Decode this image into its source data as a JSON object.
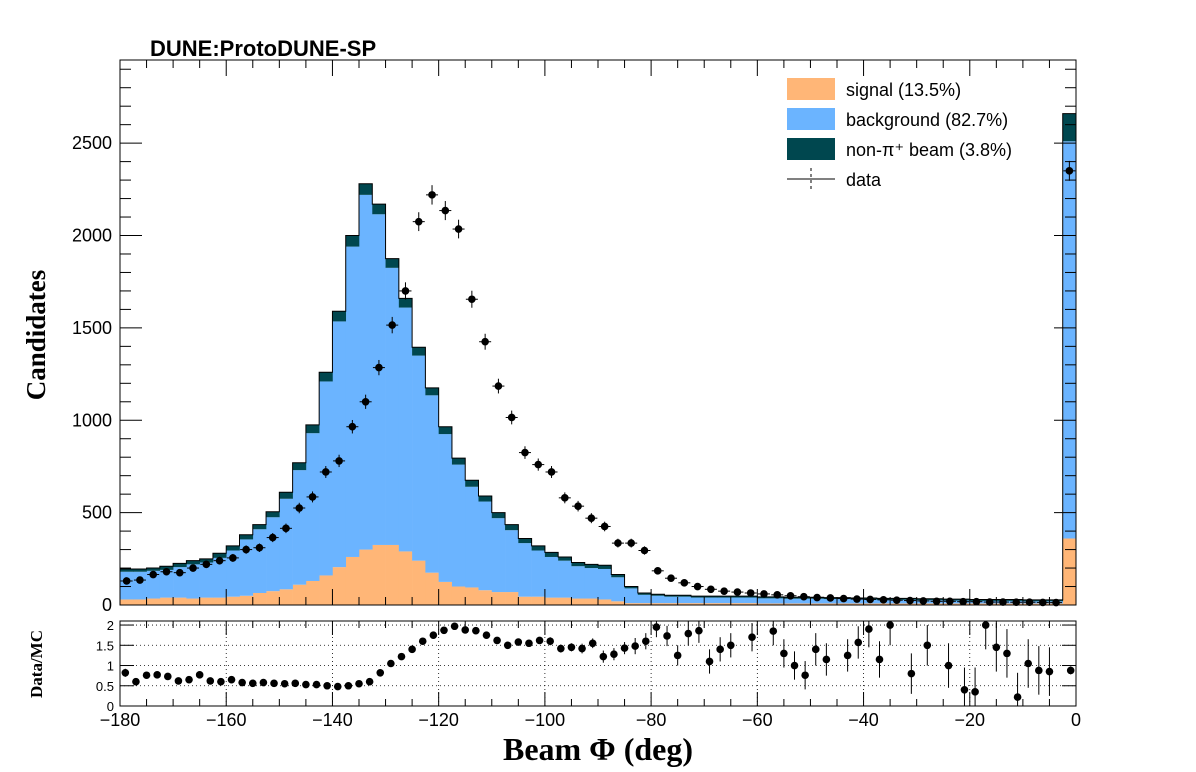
{
  "chart_data": [
    {
      "type": "bar",
      "title": "DUNE:ProtoDUNE-SP",
      "stacked": true,
      "ylabel": "Candidates",
      "ylim": [
        0,
        2950
      ],
      "xlim": [
        -180,
        0
      ],
      "bin_width": 2.5,
      "bin_starts": [
        -180,
        -177.5,
        -175,
        -172.5,
        -170,
        -167.5,
        -165,
        -162.5,
        -160,
        -157.5,
        -155,
        -152.5,
        -150,
        -147.5,
        -145,
        -142.5,
        -140,
        -137.5,
        -135,
        -132.5,
        -130,
        -127.5,
        -125,
        -122.5,
        -120,
        -117.5,
        -115,
        -112.5,
        -110,
        -107.5,
        -105,
        -102.5,
        -100,
        -97.5,
        -95,
        -92.5,
        -90,
        -87.5,
        -85,
        -82.5,
        -80,
        -77.5,
        -75,
        -72.5,
        -70,
        -67.5,
        -65,
        -62.5,
        -60,
        -57.5,
        -55,
        -52.5,
        -50,
        -47.5,
        -45,
        -42.5,
        -40,
        -37.5,
        -35,
        -32.5,
        -30,
        -27.5,
        -25,
        -22.5,
        -20,
        -17.5,
        -15,
        -12.5,
        -10,
        -7.5,
        -5,
        -2.5
      ],
      "y_ticks": [
        0,
        500,
        1000,
        1500,
        2000,
        2500
      ],
      "x_ticks": [
        -180,
        -160,
        -140,
        -120,
        -100,
        -80,
        -60,
        -40,
        -20,
        0
      ],
      "x_tick_labels": [
        "−180",
        "−160",
        "−140",
        "−120",
        "−100",
        "−80",
        "−60",
        "−40",
        "−20",
        "0"
      ],
      "series": [
        {
          "name": "signal (13.5%)",
          "color": "#ffb677",
          "values": [
            30,
            30,
            35,
            40,
            40,
            35,
            40,
            40,
            45,
            50,
            65,
            75,
            85,
            110,
            130,
            160,
            205,
            260,
            300,
            325,
            325,
            290,
            240,
            175,
            125,
            100,
            95,
            80,
            70,
            70,
            45,
            45,
            40,
            40,
            35,
            35,
            30,
            20,
            10,
            10,
            10,
            10,
            10,
            10,
            10,
            10,
            10,
            10,
            8,
            8,
            8,
            8,
            8,
            8,
            8,
            8,
            8,
            8,
            8,
            8,
            8,
            8,
            8,
            8,
            8,
            8,
            8,
            8,
            8,
            8,
            8,
            360
          ]
        },
        {
          "name": "background (82.7%)",
          "color": "#6bb4ff",
          "values": [
            150,
            150,
            150,
            150,
            165,
            185,
            190,
            215,
            250,
            305,
            345,
            400,
            490,
            620,
            800,
            1050,
            1330,
            1680,
            1920,
            1790,
            1500,
            1320,
            1110,
            960,
            800,
            660,
            545,
            480,
            400,
            335,
            290,
            250,
            220,
            200,
            175,
            165,
            165,
            130,
            80,
            45,
            40,
            35,
            35,
            30,
            30,
            30,
            30,
            30,
            28,
            28,
            26,
            26,
            26,
            24,
            24,
            22,
            22,
            20,
            20,
            20,
            18,
            18,
            16,
            16,
            14,
            14,
            14,
            14,
            12,
            12,
            12,
            2150
          ]
        },
        {
          "name": "non-π⁺ beam (3.8%)",
          "color": "#00474f",
          "values": [
            15,
            15,
            15,
            20,
            20,
            20,
            20,
            25,
            25,
            25,
            25,
            30,
            35,
            40,
            45,
            50,
            55,
            60,
            60,
            55,
            50,
            50,
            45,
            40,
            40,
            35,
            35,
            30,
            30,
            30,
            25,
            25,
            25,
            20,
            20,
            20,
            20,
            15,
            10,
            10,
            8,
            8,
            8,
            8,
            8,
            8,
            8,
            8,
            8,
            8,
            8,
            8,
            8,
            8,
            8,
            8,
            8,
            8,
            8,
            8,
            8,
            8,
            8,
            8,
            8,
            8,
            8,
            8,
            8,
            8,
            8,
            150
          ]
        }
      ],
      "data": {
        "name": "data",
        "x": [
          -178.75,
          -176.25,
          -173.75,
          -171.25,
          -168.75,
          -166.25,
          -163.75,
          -161.25,
          -158.75,
          -156.25,
          -153.75,
          -151.25,
          -148.75,
          -146.25,
          -143.75,
          -141.25,
          -138.75,
          -136.25,
          -133.75,
          -131.25,
          -128.75,
          -126.25,
          -123.75,
          -121.25,
          -118.75,
          -116.25,
          -113.75,
          -111.25,
          -108.75,
          -106.25,
          -103.75,
          -101.25,
          -98.75,
          -96.25,
          -93.75,
          -91.25,
          -88.75,
          -86.25,
          -83.75,
          -81.25,
          -78.75,
          -76.25,
          -73.75,
          -71.25,
          -68.75,
          -66.25,
          -63.75,
          -61.25,
          -58.75,
          -56.25,
          -53.75,
          -51.25,
          -48.75,
          -46.25,
          -43.75,
          -41.25,
          -38.75,
          -36.25,
          -33.75,
          -31.25,
          -28.75,
          -26.25,
          -23.75,
          -21.25,
          -18.75,
          -16.25,
          -13.75,
          -11.25,
          -8.75,
          -6.25,
          -3.75,
          -1.25
        ],
        "y": [
          130,
          135,
          165,
          180,
          175,
          200,
          220,
          240,
          255,
          300,
          310,
          365,
          415,
          525,
          585,
          720,
          780,
          965,
          1100,
          1285,
          1515,
          1700,
          2075,
          2220,
          2135,
          2035,
          1655,
          1425,
          1185,
          1015,
          825,
          760,
          720,
          580,
          535,
          470,
          425,
          335,
          335,
          295,
          185,
          145,
          120,
          100,
          85,
          75,
          70,
          65,
          60,
          55,
          50,
          45,
          40,
          38,
          35,
          32,
          30,
          28,
          26,
          24,
          22,
          20,
          20,
          18,
          18,
          16,
          16,
          15,
          15,
          14,
          13,
          2350
        ]
      }
    },
    {
      "type": "scatter",
      "ylabel": "Data/MC",
      "xlabel": "Beam  Φ (deg)",
      "ylim": [
        0,
        2.1
      ],
      "xlim": [
        -180,
        0
      ],
      "y_ticks": [
        0,
        0.5,
        1,
        1.5,
        2
      ],
      "y_tick_labels": [
        "0",
        "0.5",
        "1",
        "1.5",
        "2"
      ],
      "x": [
        -179,
        -177,
        -175,
        -173,
        -171,
        -169,
        -167,
        -165,
        -163,
        -161,
        -159,
        -157,
        -155,
        -153,
        -151,
        -149,
        -147,
        -145,
        -143,
        -141,
        -139,
        -137,
        -135,
        -133,
        -131,
        -129,
        -127,
        -125,
        -123,
        -121,
        -119,
        -117,
        -115,
        -113,
        -111,
        -109,
        -107,
        -105,
        -103,
        -101,
        -99,
        -97,
        -95,
        -93,
        -91,
        -89,
        -87,
        -85,
        -83,
        -81,
        -79,
        -77,
        -75,
        -73,
        -71,
        -69,
        -67,
        -65,
        -61,
        -57,
        -55,
        -53,
        -51,
        -49,
        -47,
        -43,
        -41,
        -39,
        -37,
        -35,
        -31,
        -28,
        -24,
        -21,
        -19,
        -17,
        -15,
        -13,
        -11,
        -9,
        -7,
        -5,
        -1
      ],
      "y": [
        0.82,
        0.6,
        0.76,
        0.77,
        0.73,
        0.62,
        0.65,
        0.77,
        0.62,
        0.6,
        0.65,
        0.58,
        0.56,
        0.58,
        0.56,
        0.55,
        0.56,
        0.53,
        0.53,
        0.5,
        0.48,
        0.5,
        0.55,
        0.6,
        0.82,
        1.05,
        1.22,
        1.4,
        1.6,
        1.75,
        1.87,
        1.97,
        1.88,
        1.86,
        1.75,
        1.62,
        1.5,
        1.58,
        1.55,
        1.62,
        1.6,
        1.42,
        1.45,
        1.42,
        1.55,
        1.22,
        1.28,
        1.43,
        1.48,
        1.6,
        1.95,
        1.73,
        1.25,
        1.79,
        1.86,
        1.1,
        1.4,
        1.5,
        1.7,
        1.85,
        1.3,
        1.0,
        0.76,
        1.4,
        1.15,
        1.25,
        1.57,
        1.9,
        1.15,
        2.0,
        0.8,
        1.5,
        1.0,
        0.4,
        0.35,
        2.0,
        1.45,
        1.3,
        0.22,
        1.05,
        0.88,
        0.85,
        0.88
      ],
      "errors": [
        0.1,
        0.08,
        0.07,
        0.07,
        0.07,
        0.07,
        0.06,
        0.06,
        0.06,
        0.05,
        0.05,
        0.05,
        0.04,
        0.04,
        0.04,
        0.04,
        0.03,
        0.03,
        0.03,
        0.03,
        0.03,
        0.03,
        0.03,
        0.03,
        0.03,
        0.03,
        0.04,
        0.04,
        0.04,
        0.04,
        0.05,
        0.05,
        0.05,
        0.06,
        0.06,
        0.07,
        0.07,
        0.08,
        0.08,
        0.08,
        0.1,
        0.1,
        0.1,
        0.12,
        0.12,
        0.15,
        0.15,
        0.15,
        0.2,
        0.2,
        0.25,
        0.25,
        0.25,
        0.3,
        0.3,
        0.3,
        0.3,
        0.3,
        0.35,
        0.35,
        0.35,
        0.35,
        0.35,
        0.4,
        0.4,
        0.4,
        0.4,
        0.45,
        0.45,
        0.5,
        0.5,
        0.5,
        0.55,
        0.55,
        0.6,
        0.6,
        0.6,
        0.6,
        0.6,
        0.6,
        0.6,
        0.6,
        0.1
      ]
    }
  ]
}
